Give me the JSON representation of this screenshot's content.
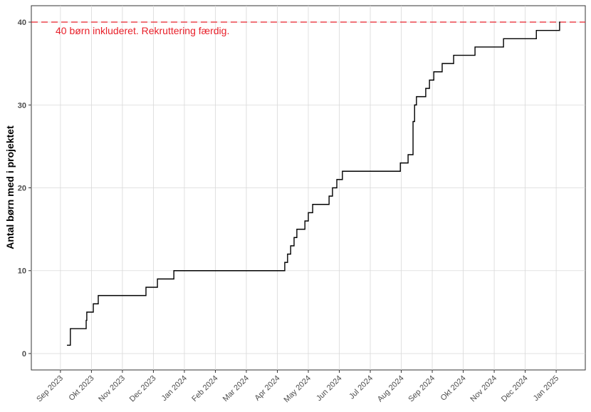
{
  "chart_data": {
    "type": "step",
    "y_label": "Antal børn med i projektet",
    "annotation": "40 børn inkluderet. Rekruttering færdig.",
    "hline": 40,
    "hline_color": "#e8202a",
    "color": "#000000",
    "grid": true,
    "x": [
      0.21,
      0.32,
      0.83,
      0.85,
      1.06,
      1.22,
      2.76,
      3.13,
      3.66,
      7.24,
      7.33,
      7.43,
      7.54,
      7.63,
      7.89,
      8.0,
      8.14,
      8.67,
      8.78,
      8.92,
      9.1,
      10.97,
      11.22,
      11.38,
      11.43,
      11.49,
      11.79,
      11.91,
      12.05,
      12.32,
      12.69,
      13.38,
      14.3,
      15.36,
      16.11
    ],
    "values": [
      1,
      3,
      4,
      5,
      6,
      7,
      8,
      9,
      10,
      11,
      12,
      13,
      14,
      15,
      16,
      17,
      18,
      19,
      20,
      21,
      22,
      23,
      24,
      28,
      30,
      31,
      32,
      33,
      34,
      35,
      36,
      37,
      38,
      39,
      40
    ],
    "xlim": [
      -0.94,
      16.94
    ],
    "ylim": [
      -1.98,
      41.98
    ],
    "yticks": [
      0,
      10,
      20,
      30,
      40
    ],
    "xticks": [
      {
        "value": 0,
        "label": "Sep 2023"
      },
      {
        "value": 1,
        "label": "Okt 2023"
      },
      {
        "value": 2,
        "label": "Nov 2023"
      },
      {
        "value": 3,
        "label": "Dec 2023"
      },
      {
        "value": 4,
        "label": "Jan 2024"
      },
      {
        "value": 5,
        "label": "Feb 2024"
      },
      {
        "value": 6,
        "label": "Mar 2024"
      },
      {
        "value": 7,
        "label": "Apr 2024"
      },
      {
        "value": 8,
        "label": "May 2024"
      },
      {
        "value": 9,
        "label": "Jun 2024"
      },
      {
        "value": 10,
        "label": "Jul 2024"
      },
      {
        "value": 11,
        "label": "Aug 2024"
      },
      {
        "value": 12,
        "label": "Sep 2024"
      },
      {
        "value": 13,
        "label": "Okt 2024"
      },
      {
        "value": 14,
        "label": "Nov 2024"
      },
      {
        "value": 15,
        "label": "Dec 2024"
      },
      {
        "value": 16,
        "label": "Jan 2025"
      }
    ]
  }
}
